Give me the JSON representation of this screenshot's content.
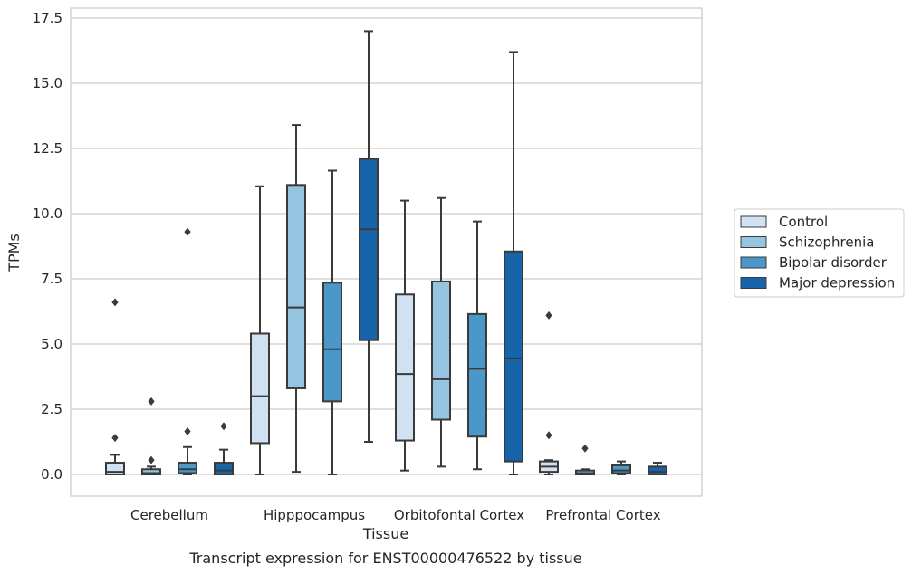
{
  "chart_data": {
    "type": "box",
    "xlabel": "Tissue",
    "ylabel": "TPMs",
    "caption": "Transcript expression for ENST00000476522 by tissue",
    "ylim": [
      -0.8,
      17.8
    ],
    "yticks": [
      "0.0",
      "2.5",
      "5.0",
      "7.5",
      "10.0",
      "12.5",
      "15.0",
      "17.5"
    ],
    "ytick_values": [
      0,
      2.5,
      5,
      7.5,
      10,
      12.5,
      15,
      17.5
    ],
    "grid": "horizontal",
    "legend_position": "right",
    "categories": [
      "Cerebellum",
      "Hipppocampus",
      "Orbitofontal Cortex",
      "Prefrontal Cortex"
    ],
    "series": [
      {
        "name": "Control",
        "color": "#d0e1f2",
        "boxes": [
          {
            "whislo": 0.0,
            "q1": 0.0,
            "med": 0.1,
            "q3": 0.45,
            "whishi": 0.75,
            "fliers": [
              1.4,
              6.6
            ]
          },
          {
            "whislo": 0.0,
            "q1": 1.2,
            "med": 3.0,
            "q3": 5.4,
            "whishi": 11.05,
            "fliers": []
          },
          {
            "whislo": 0.15,
            "q1": 1.3,
            "med": 3.85,
            "q3": 6.9,
            "whishi": 10.5,
            "fliers": []
          },
          {
            "whislo": 0.0,
            "q1": 0.1,
            "med": 0.3,
            "q3": 0.5,
            "whishi": 0.55,
            "fliers": [
              1.5,
              6.1
            ]
          }
        ]
      },
      {
        "name": "Schizophrenia",
        "color": "#94c4df",
        "boxes": [
          {
            "whislo": 0.0,
            "q1": 0.0,
            "med": 0.05,
            "q3": 0.2,
            "whishi": 0.3,
            "fliers": [
              0.55,
              2.8
            ]
          },
          {
            "whislo": 0.1,
            "q1": 3.3,
            "med": 6.4,
            "q3": 11.1,
            "whishi": 13.4,
            "fliers": []
          },
          {
            "whislo": 0.3,
            "q1": 2.1,
            "med": 3.65,
            "q3": 7.4,
            "whishi": 10.6,
            "fliers": []
          },
          {
            "whislo": 0.0,
            "q1": 0.0,
            "med": 0.05,
            "q3": 0.15,
            "whishi": 0.2,
            "fliers": [
              1.0
            ]
          }
        ]
      },
      {
        "name": "Bipolar disorder",
        "color": "#4a98c9",
        "boxes": [
          {
            "whislo": 0.0,
            "q1": 0.05,
            "med": 0.2,
            "q3": 0.45,
            "whishi": 1.05,
            "fliers": [
              1.65,
              9.3
            ]
          },
          {
            "whislo": 0.0,
            "q1": 2.8,
            "med": 4.8,
            "q3": 7.35,
            "whishi": 11.65,
            "fliers": []
          },
          {
            "whislo": 0.2,
            "q1": 1.45,
            "med": 4.05,
            "q3": 6.15,
            "whishi": 9.7,
            "fliers": []
          },
          {
            "whislo": 0.0,
            "q1": 0.05,
            "med": 0.15,
            "q3": 0.35,
            "whishi": 0.5,
            "fliers": []
          }
        ]
      },
      {
        "name": "Major depression",
        "color": "#1764ab",
        "boxes": [
          {
            "whislo": 0.0,
            "q1": 0.0,
            "med": 0.15,
            "q3": 0.45,
            "whishi": 0.95,
            "fliers": [
              1.85
            ]
          },
          {
            "whislo": 1.25,
            "q1": 5.15,
            "med": 9.4,
            "q3": 12.1,
            "whishi": 17.0,
            "fliers": []
          },
          {
            "whislo": 0.0,
            "q1": 0.5,
            "med": 4.45,
            "q3": 8.55,
            "whishi": 16.2,
            "fliers": []
          },
          {
            "whislo": 0.0,
            "q1": 0.0,
            "med": 0.1,
            "q3": 0.3,
            "whishi": 0.45,
            "fliers": []
          }
        ]
      }
    ]
  }
}
